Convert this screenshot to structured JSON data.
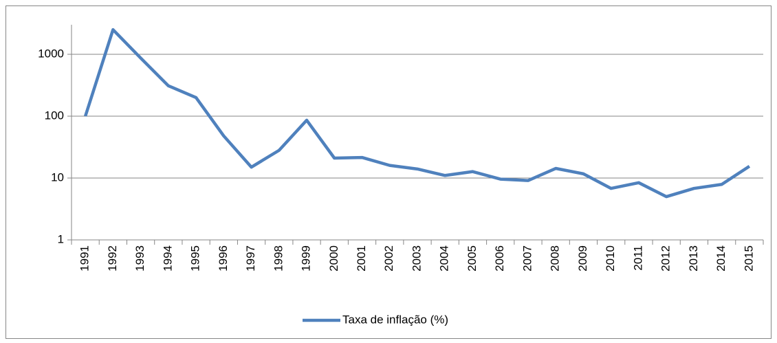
{
  "chart_data": {
    "type": "line",
    "log_scale": true,
    "grid": true,
    "legend": "bottom",
    "categories": [
      "1991",
      "1992",
      "1993",
      "1994",
      "1995",
      "1996",
      "1997",
      "1998",
      "1999",
      "2000",
      "2001",
      "2002",
      "2003",
      "2004",
      "2005",
      "2006",
      "2007",
      "2008",
      "2009",
      "2010",
      "2011",
      "2012",
      "2013",
      "2014",
      "2015"
    ],
    "series": [
      {
        "name": "Taxa de inflação (%)",
        "color": "#4f81bd",
        "values": [
          100,
          2500,
          870,
          310,
          200,
          48,
          15,
          28,
          86,
          21,
          21.5,
          16,
          14,
          11,
          12.7,
          9.6,
          9.1,
          14.3,
          11.7,
          6.8,
          8.4,
          5.0,
          6.8,
          7.9,
          15.5
        ]
      }
    ],
    "ylim": [
      1,
      3000
    ],
    "yticks": [
      1,
      10,
      100,
      1000
    ]
  }
}
